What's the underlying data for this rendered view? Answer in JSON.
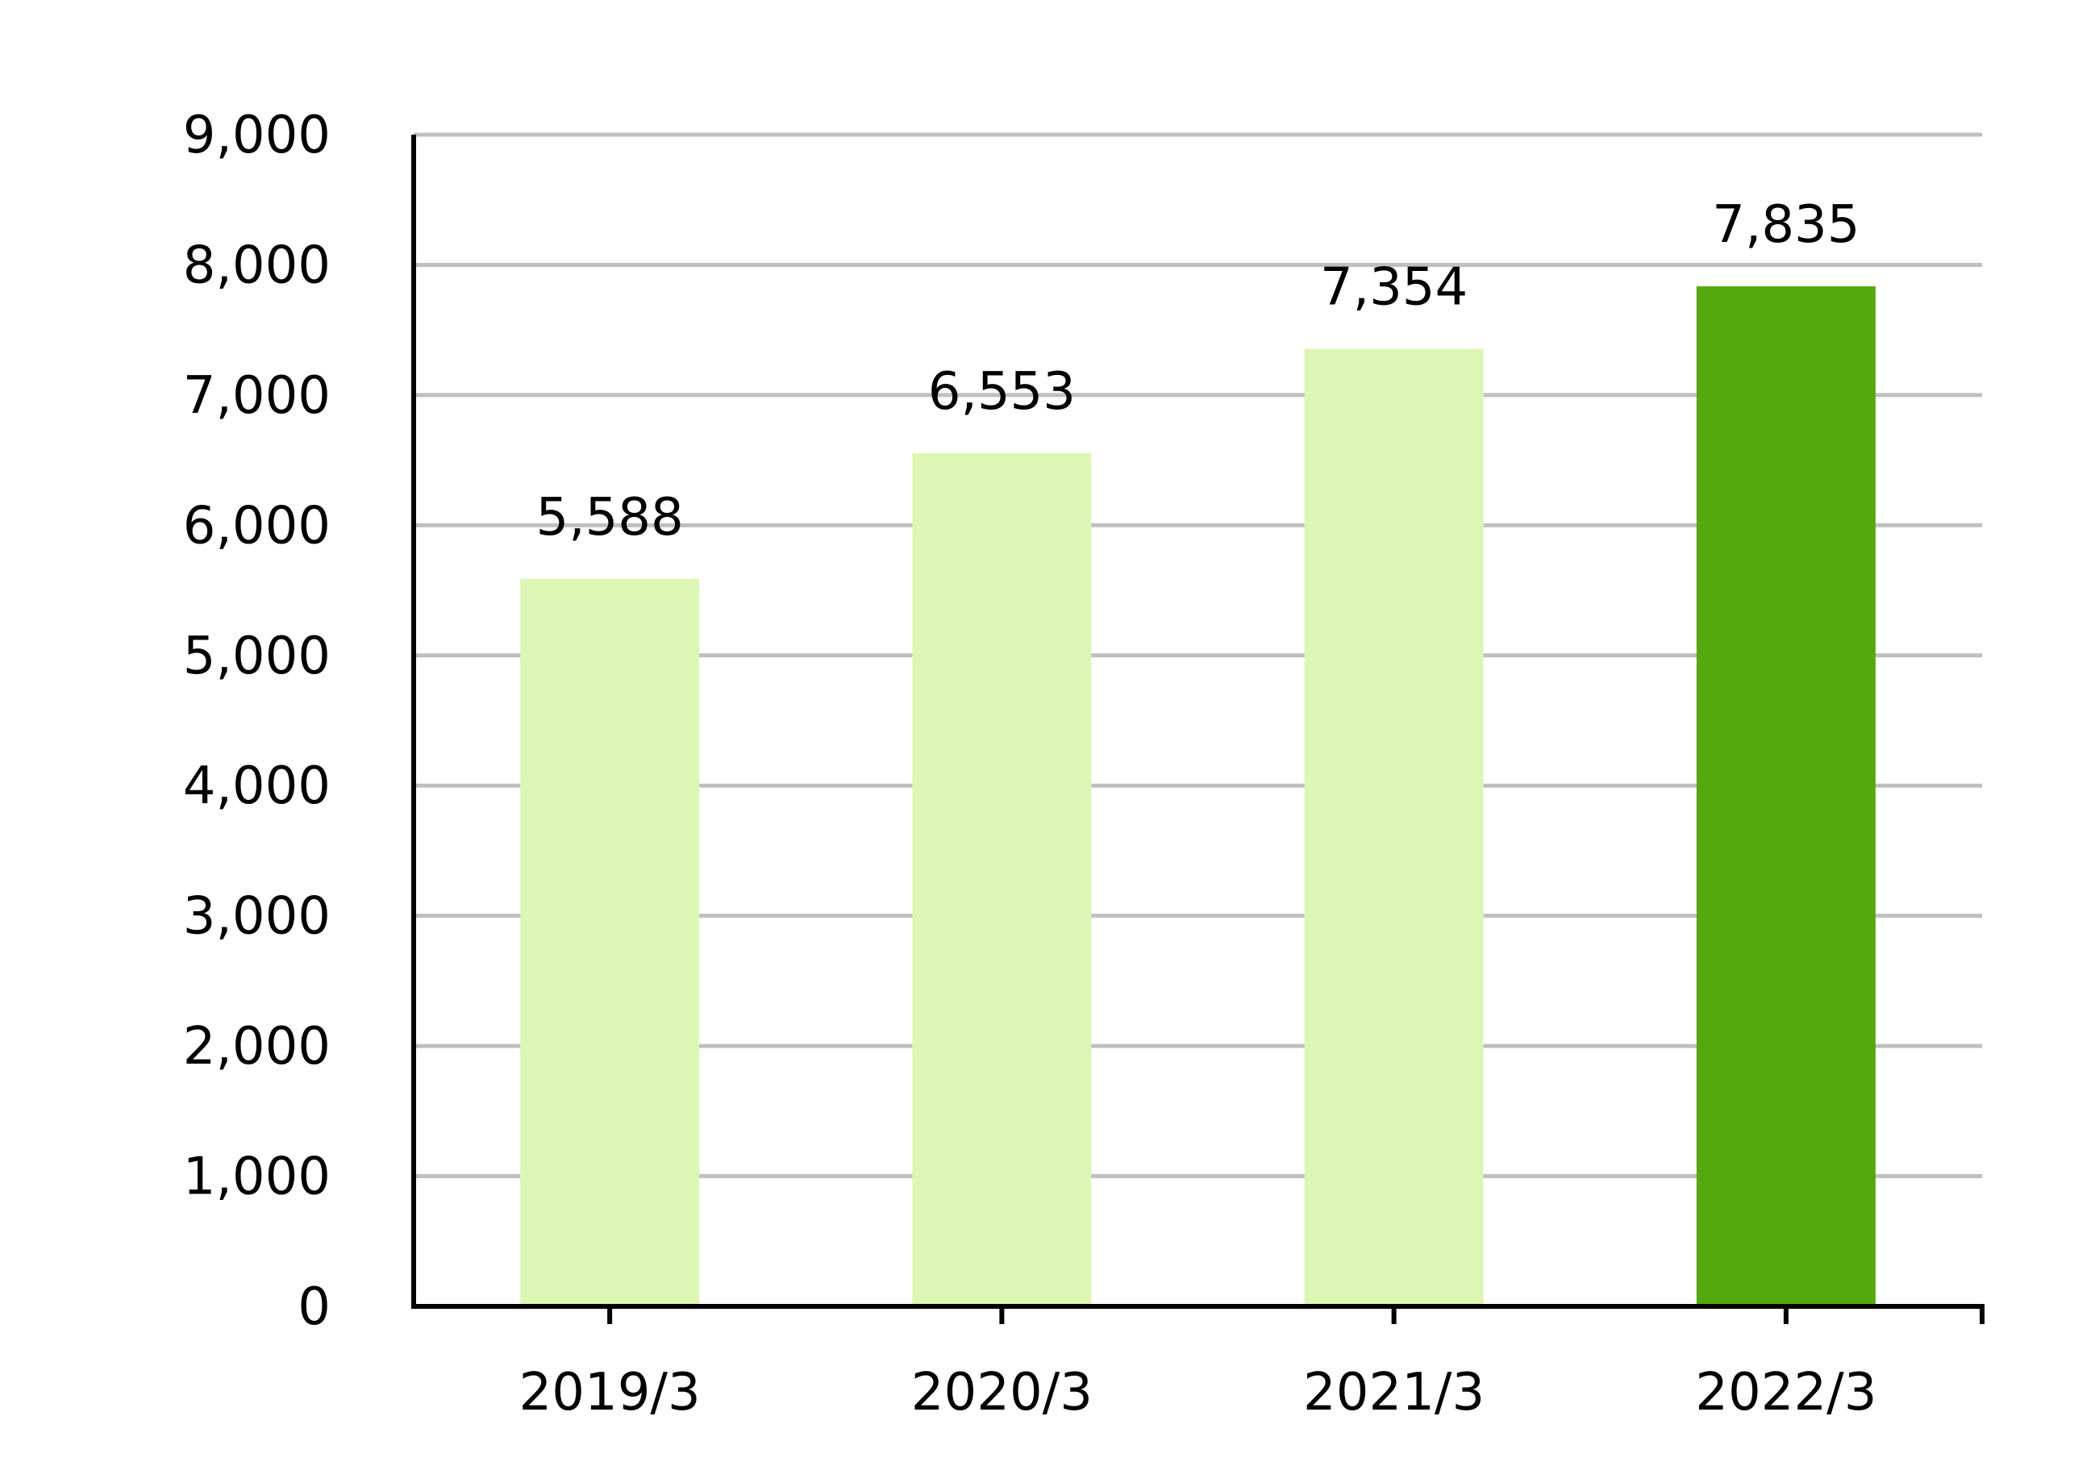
{
  "chart_data": {
    "type": "bar",
    "categories": [
      "2019/3",
      "2020/3",
      "2021/3",
      "2022/3"
    ],
    "values": [
      5588,
      6553,
      7354,
      7835
    ],
    "value_labels": [
      "5,588",
      "6,553",
      "7,354",
      "7,835"
    ],
    "title": "",
    "xlabel": "",
    "ylabel": "",
    "ylim": [
      0,
      9000
    ],
    "yticks": [
      0,
      1000,
      2000,
      3000,
      4000,
      5000,
      6000,
      7000,
      8000,
      9000
    ],
    "ytick_labels": [
      "0",
      "1,000",
      "2,000",
      "3,000",
      "4,000",
      "5,000",
      "6,000",
      "7,000",
      "8,000",
      "9,000"
    ],
    "grid": true,
    "legend": "none",
    "colors": {
      "bar": "#ddf6b3",
      "highlight_bar": "#54a90f",
      "grid": "#bfbfbf",
      "axis": "#000000"
    },
    "highlight_index": 3
  }
}
